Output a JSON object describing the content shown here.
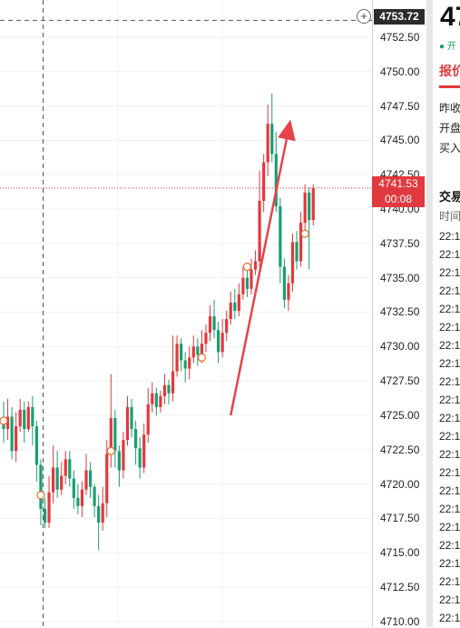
{
  "chart_data": {
    "type": "candlestick",
    "y_axis_ticks": [
      "4752.50",
      "4750.00",
      "4747.50",
      "4745.00",
      "4742.50",
      "4740.00",
      "4737.50",
      "4735.00",
      "4732.50",
      "4730.00",
      "4727.50",
      "4725.00",
      "4722.50",
      "4720.00",
      "4717.50",
      "4715.00",
      "4712.50",
      "4710.00"
    ],
    "ylim": [
      4709.6,
      4755.2
    ],
    "crosshair_price": "4753.72",
    "current_price": "4741.53",
    "countdown": "00:08",
    "current_value": 4741.53,
    "candles": [
      [
        4724.9,
        4724.0,
        4726.0,
        4723.0
      ],
      [
        4724.0,
        4724.9,
        4726.2,
        4723.2
      ],
      [
        4724.9,
        4722.4,
        4725.6,
        4721.8
      ],
      [
        4722.4,
        4724.2,
        4725.2,
        4721.6
      ],
      [
        4724.2,
        4725.4,
        4726.2,
        4723.8
      ],
      [
        4725.4,
        4724.0,
        4726.0,
        4723.0
      ],
      [
        4724.0,
        4725.6,
        4726.0,
        4723.8
      ],
      [
        4725.6,
        4724.2,
        4726.4,
        4722.8
      ],
      [
        4724.2,
        4721.4,
        4724.6,
        4720.2
      ],
      [
        4721.4,
        4718.2,
        4721.8,
        4717.0
      ],
      [
        4718.2,
        4717.2,
        4719.0,
        4716.8
      ],
      [
        4717.2,
        4719.4,
        4720.6,
        4716.8
      ],
      [
        4719.4,
        4721.2,
        4722.8,
        4718.6
      ],
      [
        4721.2,
        4719.6,
        4722.4,
        4719.0
      ],
      [
        4719.6,
        4720.6,
        4721.6,
        4719.2
      ],
      [
        4720.6,
        4721.8,
        4722.4,
        4720.0
      ],
      [
        4721.8,
        4720.4,
        4722.4,
        4719.8
      ],
      [
        4720.4,
        4719.0,
        4721.0,
        4718.2
      ],
      [
        4719.0,
        4718.4,
        4720.0,
        4717.8
      ],
      [
        4718.4,
        4719.6,
        4720.2,
        4717.6
      ],
      [
        4719.6,
        4721.0,
        4722.2,
        4719.2
      ],
      [
        4721.0,
        4719.8,
        4721.6,
        4719.0
      ],
      [
        4719.8,
        4718.4,
        4720.0,
        4717.6
      ],
      [
        4718.4,
        4717.2,
        4719.2,
        4715.2
      ],
      [
        4717.2,
        4718.6,
        4719.8,
        4716.6
      ],
      [
        4718.6,
        4722.2,
        4723.2,
        4717.6
      ],
      [
        4722.2,
        4724.8,
        4728.0,
        4721.2
      ],
      [
        4724.8,
        4722.4,
        4725.4,
        4721.2
      ],
      [
        4722.4,
        4721.0,
        4722.8,
        4719.8
      ],
      [
        4721.0,
        4723.2,
        4723.8,
        4720.4
      ],
      [
        4723.2,
        4725.6,
        4726.4,
        4722.8
      ],
      [
        4725.6,
        4724.0,
        4726.2,
        4723.4
      ],
      [
        4724.0,
        4722.6,
        4724.6,
        4721.4
      ],
      [
        4722.6,
        4721.2,
        4723.4,
        4720.4
      ],
      [
        4721.2,
        4723.6,
        4724.4,
        4720.8
      ],
      [
        4723.6,
        4725.8,
        4727.0,
        4723.0
      ],
      [
        4725.8,
        4726.6,
        4727.4,
        4725.2
      ],
      [
        4726.6,
        4725.6,
        4727.0,
        4725.0
      ],
      [
        4725.6,
        4726.4,
        4726.8,
        4725.2
      ],
      [
        4726.4,
        4727.2,
        4728.0,
        4725.8
      ],
      [
        4727.2,
        4726.6,
        4727.6,
        4725.8
      ],
      [
        4726.6,
        4728.2,
        4730.8,
        4726.0
      ],
      [
        4728.2,
        4730.2,
        4730.8,
        4727.8
      ],
      [
        4730.2,
        4729.0,
        4730.6,
        4728.2
      ],
      [
        4729.0,
        4728.4,
        4729.6,
        4727.4
      ],
      [
        4728.4,
        4729.2,
        4730.0,
        4727.6
      ],
      [
        4729.2,
        4730.0,
        4730.8,
        4728.8
      ],
      [
        4730.0,
        4729.4,
        4730.6,
        4728.6
      ],
      [
        4729.4,
        4730.2,
        4731.2,
        4728.8
      ],
      [
        4730.2,
        4731.0,
        4731.6,
        4729.6
      ],
      [
        4731.0,
        4732.2,
        4733.0,
        4730.4
      ],
      [
        4732.2,
        4731.2,
        4733.4,
        4730.6
      ],
      [
        4731.2,
        4729.6,
        4731.8,
        4728.8
      ],
      [
        4729.6,
        4731.0,
        4732.0,
        4729.2
      ],
      [
        4731.0,
        4732.0,
        4732.6,
        4730.4
      ],
      [
        4732.0,
        4733.2,
        4734.0,
        4731.6
      ],
      [
        4733.2,
        4732.6,
        4734.2,
        4732.0
      ],
      [
        4732.6,
        4733.8,
        4734.6,
        4732.2
      ],
      [
        4733.8,
        4735.0,
        4735.8,
        4733.4
      ],
      [
        4735.0,
        4734.2,
        4735.6,
        4733.6
      ],
      [
        4734.2,
        4735.6,
        4736.4,
        4733.8
      ],
      [
        4735.6,
        4736.2,
        4737.0,
        4735.2
      ],
      [
        4736.2,
        4740.6,
        4742.8,
        4735.8
      ],
      [
        4740.6,
        4743.4,
        4744.0,
        4739.8
      ],
      [
        4743.4,
        4746.2,
        4747.6,
        4742.4
      ],
      [
        4746.2,
        4744.0,
        4748.4,
        4743.4
      ],
      [
        4744.0,
        4740.2,
        4745.6,
        4739.8
      ],
      [
        4740.2,
        4735.8,
        4740.8,
        4734.6
      ],
      [
        4735.8,
        4733.4,
        4736.4,
        4732.8
      ],
      [
        4733.4,
        4734.6,
        4735.2,
        4732.6
      ],
      [
        4734.6,
        4737.6,
        4738.2,
        4734.0
      ],
      [
        4737.6,
        4736.2,
        4738.4,
        4735.6
      ],
      [
        4736.2,
        4739.0,
        4739.8,
        4735.8
      ],
      [
        4739.0,
        4741.2,
        4741.8,
        4738.4
      ],
      [
        4741.2,
        4739.2,
        4741.6,
        4735.6
      ],
      [
        4739.2,
        4741.53,
        4741.8,
        4738.8
      ]
    ],
    "markers": [
      {
        "candle": 0,
        "price": 4724.6
      },
      {
        "candle": 9,
        "price": 4719.2
      },
      {
        "candle": 26,
        "price": 4722.4
      },
      {
        "candle": 48,
        "price": 4729.2
      },
      {
        "candle": 59,
        "price": 4735.8
      },
      {
        "candle": 73,
        "price": 4738.2
      }
    ],
    "arrow": {
      "from": [
        55,
        4725.0
      ],
      "to": [
        69.5,
        4746.5
      ]
    },
    "cursor": {
      "candle": 10,
      "price": 4753.72
    },
    "colors": {
      "up": "#e0393e",
      "down": "#1a9e72",
      "arrow": "#e8434b",
      "price_line": "#e0393e"
    }
  },
  "panel": {
    "price_partial": "47",
    "status_partial": "● 开",
    "tab_partial": "报价",
    "row1": "昨收",
    "row2": "开盘",
    "row3": "买入",
    "trades_title": "交易",
    "trades_col": "时间",
    "trade_times": [
      "22:1",
      "22:1",
      "22:1",
      "22:1",
      "22:1",
      "22:1",
      "22:1",
      "22:1",
      "22:1",
      "22:1",
      "22:1",
      "22:1",
      "22:1",
      "22:1",
      "22:1",
      "22:1",
      "22:1",
      "22:1",
      "22:1",
      "22:1",
      "22:1",
      "22:1"
    ]
  }
}
